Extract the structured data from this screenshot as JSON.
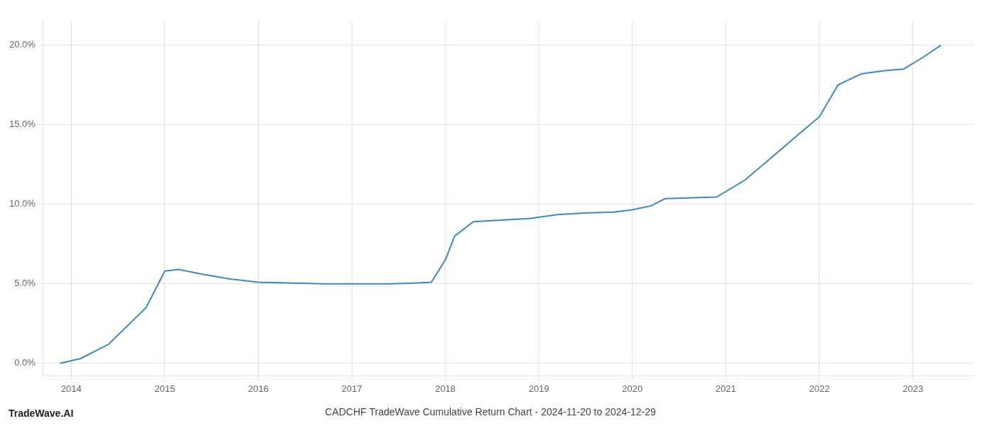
{
  "chart_data": {
    "type": "line",
    "title": "CADCHF TradeWave Cumulative Return Chart - 2024-11-20 to 2024-12-29",
    "annotations": [
      "TradeWave.AI"
    ],
    "x": [
      2013.88,
      2014.1,
      2014.4,
      2014.8,
      2015.0,
      2015.15,
      2015.4,
      2015.7,
      2016.0,
      2016.3,
      2016.7,
      2017.0,
      2017.4,
      2017.55,
      2017.7,
      2017.85,
      2018.0,
      2018.1,
      2018.3,
      2018.6,
      2018.9,
      2019.2,
      2019.5,
      2019.8,
      2020.0,
      2020.2,
      2020.35,
      2020.6,
      2020.9,
      2021.2,
      2021.5,
      2021.8,
      2022.0,
      2022.2,
      2022.45,
      2022.7,
      2022.9,
      2023.1,
      2023.3
    ],
    "values": [
      0.0,
      0.3,
      1.2,
      3.5,
      5.8,
      5.9,
      5.6,
      5.3,
      5.1,
      5.05,
      5.0,
      5.0,
      5.0,
      5.02,
      5.05,
      5.1,
      6.5,
      8.0,
      8.9,
      9.0,
      9.1,
      9.35,
      9.45,
      9.5,
      9.65,
      9.9,
      10.35,
      10.4,
      10.45,
      11.5,
      13.0,
      14.5,
      15.5,
      17.5,
      18.2,
      18.4,
      18.5,
      19.2,
      20.0
    ],
    "color": "#3a8abf",
    "xlim": [
      2013.7,
      2023.65
    ],
    "ylim": [
      -0.8,
      21.5
    ],
    "xticks": [
      2014,
      2015,
      2016,
      2017,
      2018,
      2019,
      2020,
      2021,
      2022,
      2023
    ],
    "yticks": [
      {
        "value": 0.0,
        "label": "0.0%"
      },
      {
        "value": 5.0,
        "label": "5.0%"
      },
      {
        "value": 10.0,
        "label": "10.0%"
      },
      {
        "value": 15.0,
        "label": "15.0%"
      },
      {
        "value": 20.0,
        "label": "20.0%"
      }
    ],
    "grid": true
  }
}
